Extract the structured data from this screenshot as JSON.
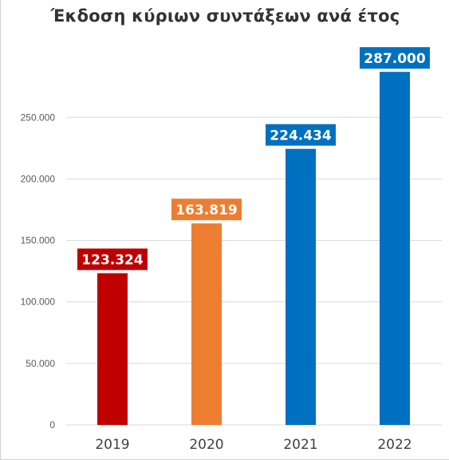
{
  "chart_data": {
    "type": "bar",
    "title": "Έκδοση κύριων συντάξεων ανά έτος",
    "xlabel": "",
    "ylabel": "",
    "categories": [
      "2019",
      "2020",
      "2021",
      "2022"
    ],
    "values": [
      123324,
      163819,
      224434,
      287000
    ],
    "value_labels": [
      "123.324",
      "163.819",
      "224.434",
      "287.000"
    ],
    "bar_colors": [
      "#C00000",
      "#ED7D31",
      "#0070C0",
      "#0070C0"
    ],
    "ylim": [
      0,
      287000
    ],
    "yticks": [
      0,
      50000,
      100000,
      150000,
      200000,
      250000
    ],
    "ytick_labels": [
      "0",
      "50.000",
      "100.000",
      "150.000",
      "200.000",
      "250.000"
    ],
    "grid": true,
    "legend": "none"
  }
}
